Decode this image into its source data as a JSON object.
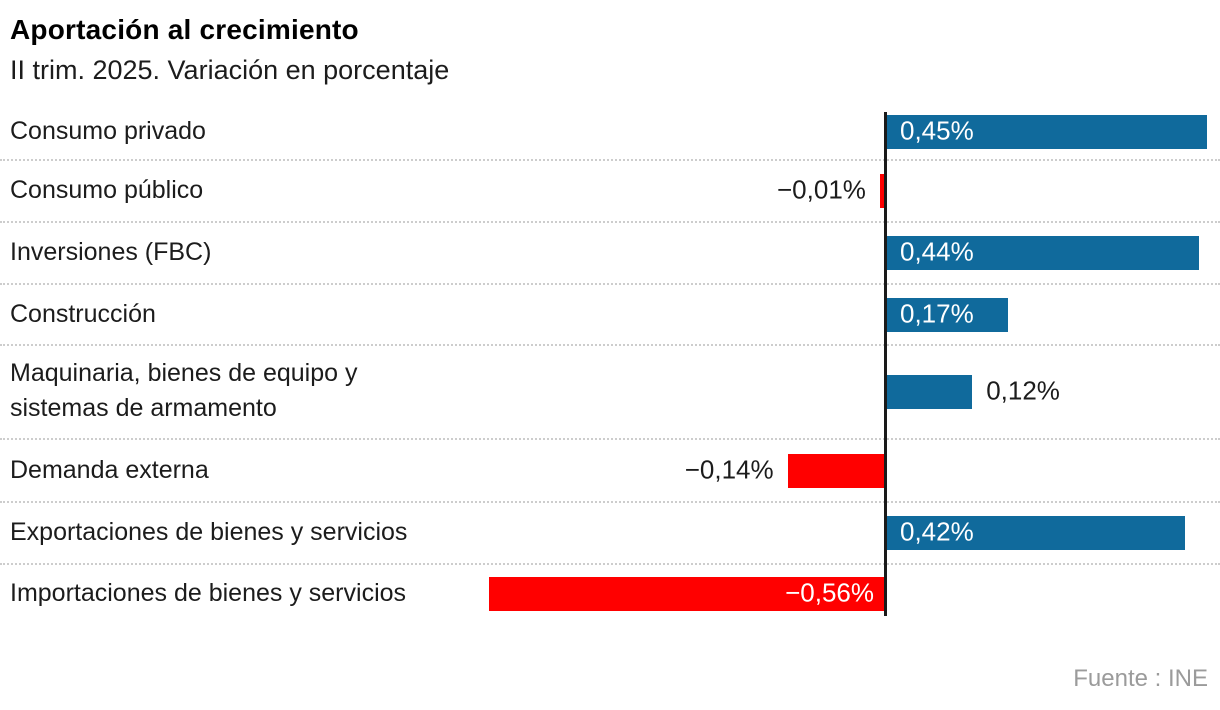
{
  "header": {
    "title": "Aportación al crecimiento",
    "subtitle": "II trim. 2025. Variación en porcentaje"
  },
  "footer": {
    "source": "Fuente : INE"
  },
  "colors": {
    "positive_bar": "#106a9c",
    "negative_bar": "#ff0000",
    "axis": "#1a1a1a",
    "text": "#1c1c1c",
    "value_label_inside": "#ffffff",
    "separator": "#cdcdcd",
    "source_text": "#9b9b9b"
  },
  "chart_data": {
    "type": "bar",
    "orientation": "horizontal",
    "title": "Aportación al crecimiento",
    "subtitle": "II trim. 2025. Variación en porcentaje",
    "unit": "%",
    "xlim": [
      -0.6,
      0.47
    ],
    "grid": false,
    "legend": null,
    "source": "Fuente : INE",
    "categories": [
      "Consumo privado",
      "Consumo público",
      "Inversiones (FBC)",
      "Construcción",
      "Maquinaria, bienes de equipo y\nsistemas de armamento",
      "Demanda externa",
      "Exportaciones de bienes y servicios",
      "Importaciones de bienes y servicios"
    ],
    "values": [
      0.45,
      -0.01,
      0.44,
      0.17,
      0.12,
      -0.14,
      0.42,
      -0.56
    ],
    "value_labels": [
      "0,45%",
      "−0,01%",
      "0,44%",
      "0,17%",
      "0,12%",
      "−0,14%",
      "0,42%",
      "−0,56%"
    ],
    "value_label_inside": [
      true,
      false,
      true,
      true,
      false,
      false,
      true,
      true
    ]
  }
}
